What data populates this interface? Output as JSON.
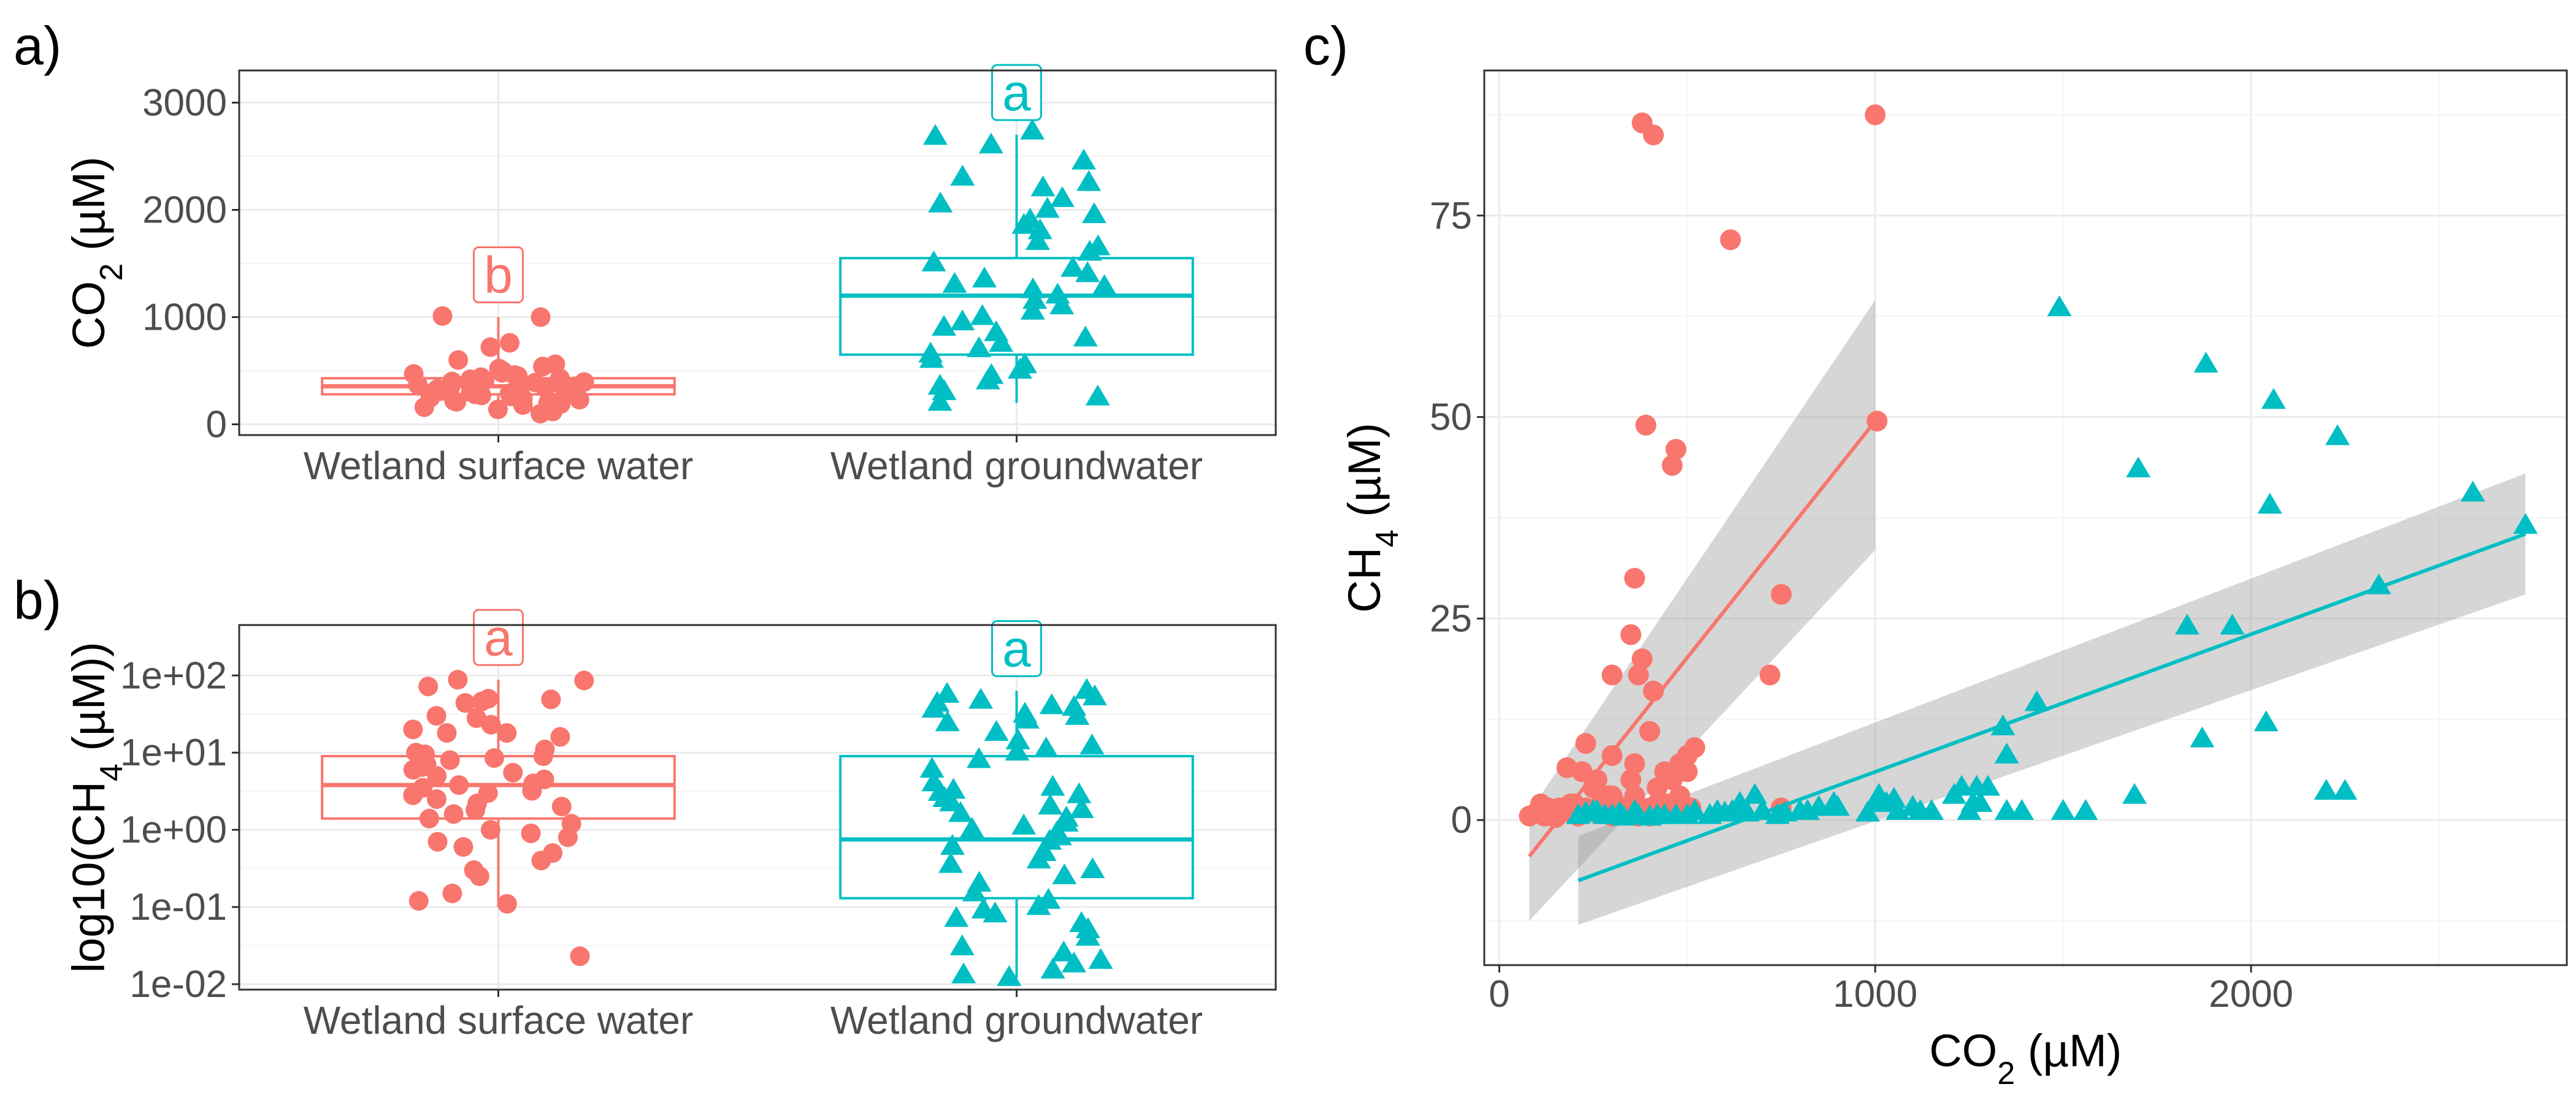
{
  "chart_data": [
    {
      "panel_label": "a)",
      "type": "box",
      "ylabel": "CO2 (µM)",
      "ylim": [
        -100,
        3300
      ],
      "yticks": [
        0,
        1000,
        2000,
        3000
      ],
      "yticklabels": [
        "0",
        "1000",
        "2000",
        "3000"
      ],
      "categories": [
        "Wetland surface water",
        "Wetland groundwater"
      ],
      "groups": [
        {
          "name": "Wetland surface water",
          "color": "#F8766D",
          "letter": "b",
          "box": {
            "q1": 280,
            "median": 355,
            "q3": 430,
            "lower": 90,
            "upper": 1000
          },
          "points": [
            1010,
            1000,
            760,
            720,
            600,
            560,
            540,
            520,
            500,
            480,
            470,
            460,
            450,
            440,
            430,
            420,
            410,
            400,
            395,
            390,
            380,
            375,
            370,
            360,
            355,
            350,
            340,
            330,
            320,
            310,
            300,
            290,
            280,
            270,
            260,
            250,
            240,
            230,
            220,
            210,
            200,
            190,
            180,
            160,
            140,
            120,
            100
          ]
        },
        {
          "name": "Wetland groundwater",
          "color": "#00BFC4",
          "letter": "a",
          "box": {
            "q1": 650,
            "median": 1200,
            "q3": 1550,
            "lower": 200,
            "upper": 2700
          },
          "points": [
            2730,
            2680,
            2600,
            2450,
            2300,
            2250,
            2200,
            2100,
            2050,
            2000,
            1950,
            1900,
            1850,
            1800,
            1700,
            1650,
            1600,
            1500,
            1450,
            1400,
            1350,
            1300,
            1280,
            1250,
            1200,
            1150,
            1100,
            1050,
            1000,
            950,
            900,
            850,
            800,
            750,
            700,
            650,
            600,
            550,
            500,
            450,
            400,
            350,
            300,
            250,
            200
          ]
        }
      ]
    },
    {
      "panel_label": "b)",
      "type": "box",
      "yscale": "log10",
      "ylabel": "log10(CH4 (µM))",
      "ylim": [
        0.0085,
        450
      ],
      "yticks": [
        0.01,
        0.1,
        1,
        10,
        100
      ],
      "yticklabels": [
        "1e-02",
        "1e-01",
        "1e+00",
        "1e+01",
        "1e+02"
      ],
      "categories": [
        "Wetland surface water",
        "Wetland groundwater"
      ],
      "groups": [
        {
          "name": "Wetland surface water",
          "color": "#F8766D",
          "letter": "a",
          "box": {
            "q1": 1.4,
            "median": 3.8,
            "q3": 9.0,
            "lower": 0.1,
            "upper": 88
          },
          "points": [
            88,
            86,
            72,
            50,
            49,
            46,
            44,
            30,
            28,
            23,
            20,
            18,
            18,
            16,
            11,
            10,
            9.5,
            9,
            8.5,
            8,
            7,
            6.5,
            6,
            5.5,
            5,
            4.5,
            4,
            3.8,
            3.5,
            3.2,
            3,
            2.8,
            2.5,
            2.2,
            2,
            1.8,
            1.6,
            1.4,
            1.2,
            1,
            0.9,
            0.8,
            0.7,
            0.6,
            0.5,
            0.4,
            0.3,
            0.25,
            0.15,
            0.12,
            0.11,
            0.023
          ]
        },
        {
          "name": "Wetland groundwater",
          "color": "#00BFC4",
          "letter": "a",
          "box": {
            "q1": 0.13,
            "median": 0.75,
            "q3": 9.0,
            "lower": 0.012,
            "upper": 63
          },
          "points": [
            63,
            56,
            52,
            47,
            43,
            40,
            38,
            36,
            31,
            29,
            26,
            24,
            18,
            14,
            12,
            11,
            10,
            8,
            6,
            4,
            3.5,
            3.2,
            3,
            2.8,
            2.5,
            2.2,
            2,
            1.8,
            1.6,
            1.4,
            1.2,
            1.1,
            1,
            0.9,
            0.8,
            0.7,
            0.6,
            0.5,
            0.4,
            0.35,
            0.3,
            0.25,
            0.2,
            0.15,
            0.12,
            0.1,
            0.09,
            0.08,
            0.07,
            0.06,
            0.05,
            0.04,
            0.03,
            0.025,
            0.02,
            0.018,
            0.015,
            0.013,
            0.012
          ]
        }
      ]
    },
    {
      "panel_label": "c)",
      "type": "scatter",
      "xlabel": "CO2 (µM)",
      "ylabel": "CH4 (µM)",
      "xlim": [
        -40,
        2840
      ],
      "ylim": [
        -18,
        93
      ],
      "xticks": [
        0,
        1000,
        2000
      ],
      "xticklabels": [
        "0",
        "1000",
        "2000"
      ],
      "yticks": [
        0,
        25,
        50,
        75
      ],
      "yticklabels": [
        "0",
        "25",
        "50",
        "75"
      ],
      "series": [
        {
          "name": "Wetland surface water",
          "color": "#F8766D",
          "marker": "circle",
          "fit": {
            "x": [
              80,
              1000
            ],
            "y": [
              -4.5,
              49.5
            ],
            "ci_lower": [
              -12.5,
              33.5
            ],
            "ci_upper": [
              1.0,
              64.5
            ]
          },
          "x": [
            380,
            410,
            1000,
            615,
            1005,
            390,
            470,
            460,
            360,
            350,
            750,
            720,
            380,
            370,
            300,
            410,
            230,
            220,
            300,
            250,
            350,
            400,
            180,
            360,
            520,
            500,
            260,
            480,
            440,
            460,
            300,
            200,
            160,
            330,
            400,
            420,
            360,
            250,
            270,
            310,
            290,
            190,
            380,
            450,
            480,
            420,
            500,
            300,
            350,
            400,
            100,
            120,
            130,
            80,
            110,
            140,
            170,
            210,
            260,
            230,
            330,
            280,
            370,
            430,
            470,
            510,
            750,
            150
          ],
          "y": [
            86.5,
            85,
            87.5,
            72,
            49.5,
            49,
            46,
            44,
            30,
            23,
            28,
            18,
            20,
            18,
            18,
            16,
            9.5,
            6,
            8,
            4,
            5,
            11,
            6.5,
            7,
            9,
            8,
            5,
            7,
            6,
            5,
            3,
            2,
            1.5,
            1,
            1.5,
            2,
            3,
            1,
            2,
            2,
            3,
            2,
            1,
            2,
            3,
            4,
            6,
            0.5,
            0.8,
            0.5,
            1,
            0.5,
            1.5,
            0.5,
            2,
            0.8,
            1,
            0.5,
            1,
            1.5,
            1,
            1,
            0.5,
            2,
            1,
            1.5,
            1.5,
            0.3
          ]
        },
        {
          "name": "Wetland groundwater",
          "color": "#00BFC4",
          "marker": "triangle",
          "fit": {
            "x": [
              210,
              2730
            ],
            "y": [
              -7.5,
              35.5
            ],
            "ci_lower": [
              -13,
              28
            ],
            "ci_upper": [
              -2,
              43
            ]
          },
          "x": [
            2730,
            2590,
            2340,
            2230,
            2250,
            2200,
            2060,
            2050,
            2040,
            1880,
            1870,
            1950,
            1830,
            1700,
            1690,
            1490,
            1390,
            1430,
            1340,
            1350,
            1250,
            1270,
            1230,
            1210,
            1260,
            1280,
            1300,
            1350,
            1500,
            1560,
            1100,
            1120,
            1060,
            1000,
            1010,
            1030,
            890,
            850,
            800,
            760,
            700,
            680,
            640,
            620,
            600,
            560,
            520,
            470,
            440,
            400,
            370,
            330,
            300,
            260,
            230,
            210,
            250,
            280,
            320,
            360,
            420,
            500,
            580,
            660,
            740,
            820,
            900,
            980,
            1050,
            1150
          ],
          "y": [
            36.5,
            40.5,
            29,
            47.5,
            3.5,
            3.5,
            52,
            39,
            12,
            56.5,
            10,
            24,
            24,
            43.5,
            3,
            63.5,
            1,
            14.5,
            11.5,
            8,
            1,
            4,
            4,
            3,
            2,
            2,
            4,
            1,
            1,
            1,
            1.5,
            1,
            1,
            2,
            3,
            2,
            2,
            1.5,
            1,
            0.8,
            1,
            3,
            2,
            1,
            0.8,
            0.5,
            1,
            0.5,
            0.5,
            0.3,
            0.5,
            0.3,
            0.5,
            1,
            0.8,
            0.5,
            1,
            0.5,
            0.8,
            1,
            0.5,
            0.5,
            1,
            0.8,
            0.5,
            1,
            1.5,
            0.8,
            2.5,
            1
          ]
        }
      ]
    }
  ]
}
